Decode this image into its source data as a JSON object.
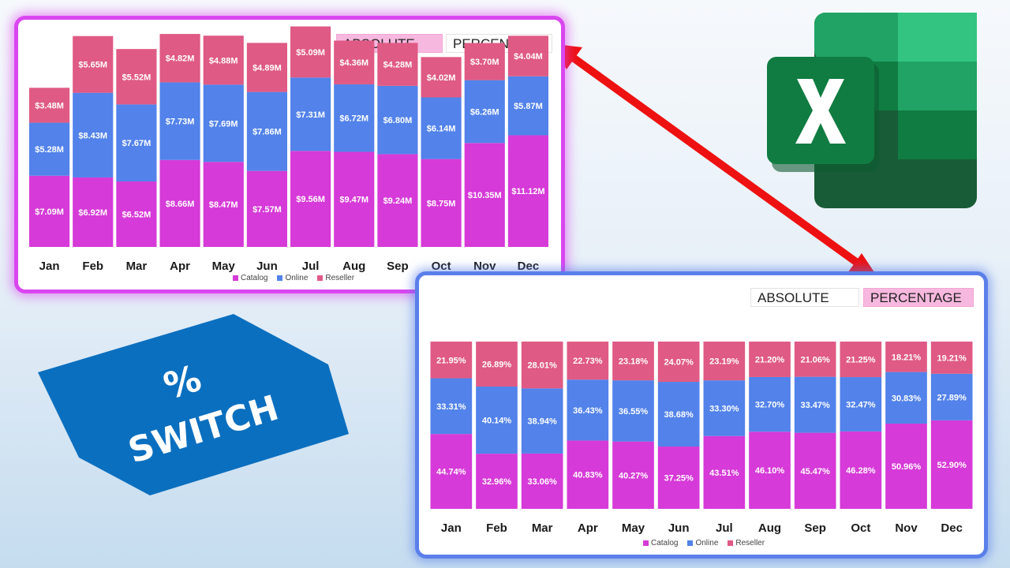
{
  "absolute_panel": {
    "toggle": {
      "absolute_label": "ABSOLUTE",
      "percentage_label": "PERCENTAGE",
      "active": "ABSOLUTE"
    }
  },
  "percentage_panel": {
    "toggle": {
      "absolute_label": "ABSOLUTE",
      "percentage_label": "PERCENTAGE",
      "active": "PERCENTAGE"
    }
  },
  "legend": [
    "Catalog",
    "Online",
    "Reseller"
  ],
  "colors": {
    "catalog": "#d63ad8",
    "online": "#5282ea",
    "reseller": "#df5a84",
    "abs_border": "#d946ef",
    "pct_border": "#5b7fea",
    "toggle_active": "#f7b8df",
    "arrow": "#ee1111",
    "badge": "#0b6fbf"
  },
  "badge": {
    "line1": "%",
    "line2": "SWITCH"
  },
  "icons": {
    "logo": "excel-logo-icon",
    "arrow": "double-arrow-icon"
  },
  "chart_data": [
    {
      "type": "bar",
      "stacked": true,
      "categories": [
        "Jan",
        "Feb",
        "Mar",
        "Apr",
        "May",
        "Jun",
        "Jul",
        "Aug",
        "Sep",
        "Oct",
        "Nov",
        "Dec"
      ],
      "series": [
        {
          "name": "Catalog",
          "values": [
            7.09,
            6.92,
            6.52,
            8.66,
            8.47,
            7.57,
            9.56,
            9.47,
            9.24,
            8.75,
            10.35,
            11.12
          ],
          "labels": [
            "$7.09M",
            "$6.92M",
            "$6.52M",
            "$8.66M",
            "$8.47M",
            "$7.57M",
            "$9.56M",
            "$9.47M",
            "$9.24M",
            "$8.75M",
            "$10.35M",
            "$11.12M"
          ]
        },
        {
          "name": "Online",
          "values": [
            5.28,
            8.43,
            7.67,
            7.73,
            7.69,
            7.86,
            7.31,
            6.72,
            6.8,
            6.14,
            6.26,
            5.87
          ],
          "labels": [
            "$5.28M",
            "$8.43M",
            "$7.67M",
            "$7.73M",
            "$7.69M",
            "$7.86M",
            "$7.31M",
            "$6.72M",
            "$6.80M",
            "$6.14M",
            "$6.26M",
            "$5.87M"
          ]
        },
        {
          "name": "Reseller",
          "values": [
            3.48,
            5.65,
            5.52,
            4.82,
            4.88,
            4.89,
            5.09,
            4.36,
            4.28,
            4.02,
            3.7,
            4.04
          ],
          "labels": [
            "$3.48M",
            "$5.65M",
            "$5.52M",
            "$4.82M",
            "$4.88M",
            "$4.89M",
            "$5.09M",
            "$4.36M",
            "$4.28M",
            "$4.02M",
            "$3.70M",
            "$4.04M"
          ]
        }
      ],
      "ylim": [
        0,
        22
      ],
      "legend_position": "bottom"
    },
    {
      "type": "bar",
      "stacked": true,
      "categories": [
        "Jan",
        "Feb",
        "Mar",
        "Apr",
        "May",
        "Jun",
        "Jul",
        "Aug",
        "Sep",
        "Oct",
        "Nov",
        "Dec"
      ],
      "series": [
        {
          "name": "Catalog",
          "values": [
            44.74,
            32.96,
            33.06,
            40.83,
            40.27,
            37.25,
            43.51,
            46.1,
            45.47,
            46.28,
            50.96,
            52.9
          ],
          "labels": [
            "44.74%",
            "32.96%",
            "33.06%",
            "40.83%",
            "40.27%",
            "37.25%",
            "43.51%",
            "46.10%",
            "45.47%",
            "46.28%",
            "50.96%",
            "52.90%"
          ]
        },
        {
          "name": "Online",
          "values": [
            33.31,
            40.14,
            38.94,
            36.43,
            36.55,
            38.68,
            33.3,
            32.7,
            33.47,
            32.47,
            30.83,
            27.89
          ],
          "labels": [
            "33.31%",
            "40.14%",
            "38.94%",
            "36.43%",
            "36.55%",
            "38.68%",
            "33.30%",
            "32.70%",
            "33.47%",
            "32.47%",
            "30.83%",
            "27.89%"
          ]
        },
        {
          "name": "Reseller",
          "values": [
            21.95,
            26.89,
            28.01,
            22.73,
            23.18,
            24.07,
            23.19,
            21.2,
            21.06,
            21.25,
            18.21,
            19.21
          ],
          "labels": [
            "21.95%",
            "26.89%",
            "28.01%",
            "22.73%",
            "23.18%",
            "24.07%",
            "23.19%",
            "21.20%",
            "21.06%",
            "21.25%",
            "18.21%",
            "19.21%"
          ]
        }
      ],
      "ylim": [
        0,
        100
      ],
      "legend_position": "bottom"
    }
  ]
}
